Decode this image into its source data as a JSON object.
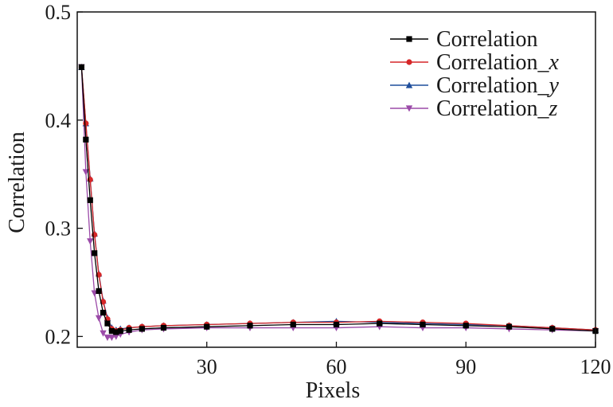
{
  "chart_data": {
    "type": "line",
    "xlabel": "Pixels",
    "ylabel": "Correlation",
    "xlim": [
      0,
      120
    ],
    "ylim": [
      0.19,
      0.5
    ],
    "xticks": [
      30,
      60,
      90,
      120
    ],
    "yticks": [
      0.2,
      0.3,
      0.4,
      0.5
    ],
    "xtick_labels": [
      "30",
      "60",
      "90",
      "120"
    ],
    "ytick_labels": [
      "0.2",
      "0.3",
      "0.4",
      "0.5"
    ],
    "grid": false,
    "legend_position": "top-right",
    "series": [
      {
        "name": "Correlation",
        "name_base": "Correlation",
        "name_suffix": "",
        "color": "#000000",
        "marker": "square",
        "x": [
          1,
          2,
          3,
          4,
          5,
          6,
          7,
          8,
          9,
          10,
          12,
          15,
          20,
          30,
          40,
          50,
          60,
          70,
          80,
          90,
          100,
          110,
          120
        ],
        "y": [
          0.449,
          0.382,
          0.326,
          0.277,
          0.242,
          0.222,
          0.212,
          0.205,
          0.204,
          0.205,
          0.206,
          0.207,
          0.208,
          0.209,
          0.21,
          0.211,
          0.211,
          0.212,
          0.211,
          0.21,
          0.209,
          0.207,
          0.205
        ]
      },
      {
        "name": "Correlation_x",
        "name_base": "Correlation_",
        "name_suffix": "x",
        "color": "#d62728",
        "marker": "circle",
        "x": [
          1,
          2,
          3,
          4,
          5,
          6,
          7,
          8,
          9,
          10,
          12,
          15,
          20,
          30,
          40,
          50,
          60,
          70,
          80,
          90,
          100,
          110,
          120
        ],
        "y": [
          0.449,
          0.397,
          0.345,
          0.294,
          0.257,
          0.232,
          0.216,
          0.207,
          0.205,
          0.206,
          0.208,
          0.209,
          0.21,
          0.211,
          0.212,
          0.213,
          0.213,
          0.214,
          0.213,
          0.212,
          0.21,
          0.208,
          0.206
        ]
      },
      {
        "name": "Correlation_y",
        "name_base": "Correlation_",
        "name_suffix": "y",
        "color": "#1f4e9c",
        "marker": "triangle-up",
        "x": [
          1,
          2,
          3,
          4,
          5,
          6,
          7,
          8,
          9,
          10,
          12,
          15,
          20,
          30,
          40,
          50,
          60,
          70,
          80,
          90,
          100,
          110,
          120
        ],
        "y": [
          0.449,
          0.397,
          0.346,
          0.295,
          0.258,
          0.233,
          0.217,
          0.208,
          0.206,
          0.207,
          0.208,
          0.209,
          0.21,
          0.211,
          0.212,
          0.213,
          0.214,
          0.213,
          0.212,
          0.211,
          0.21,
          0.208,
          0.206
        ]
      },
      {
        "name": "Correlation_z",
        "name_base": "Correlation_",
        "name_suffix": "z",
        "color": "#9b4aa8",
        "marker": "triangle-down",
        "x": [
          1,
          2,
          3,
          4,
          5,
          6,
          7,
          8,
          9,
          10,
          12,
          15,
          20,
          30,
          40,
          50,
          60,
          70,
          80,
          90,
          100,
          110,
          120
        ],
        "y": [
          0.449,
          0.352,
          0.288,
          0.24,
          0.217,
          0.203,
          0.199,
          0.199,
          0.2,
          0.202,
          0.204,
          0.206,
          0.207,
          0.208,
          0.208,
          0.208,
          0.208,
          0.209,
          0.208,
          0.208,
          0.207,
          0.206,
          0.205
        ]
      }
    ]
  }
}
